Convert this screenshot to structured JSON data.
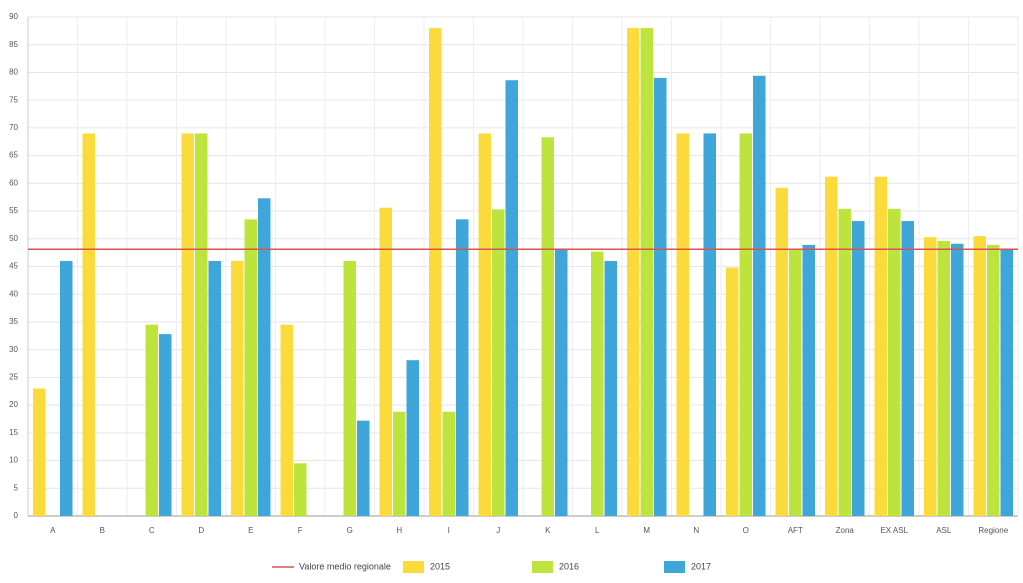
{
  "chart_data": {
    "type": "bar",
    "categories": [
      "A",
      "B",
      "C",
      "D",
      "E",
      "F",
      "G",
      "H",
      "I",
      "J",
      "K",
      "L",
      "M",
      "N",
      "O",
      "AFT",
      "Zona",
      "EX ASL",
      "ASL",
      "Regione"
    ],
    "series": [
      {
        "name": "2015",
        "color": "#fbdb3c",
        "values": [
          23,
          69,
          null,
          69,
          46,
          34.5,
          null,
          55.6,
          88,
          69,
          null,
          null,
          88,
          69,
          44.8,
          59.2,
          61.2,
          61.2,
          50.3,
          50.5
        ]
      },
      {
        "name": "2016",
        "color": "#bde33d",
        "values": [
          null,
          null,
          34.5,
          69,
          53.5,
          9.5,
          46,
          18.8,
          18.8,
          55.3,
          68.3,
          47.7,
          88,
          null,
          69,
          48,
          55.4,
          55.4,
          49.6,
          48.9
        ]
      },
      {
        "name": "2017",
        "color": "#3ea6d8",
        "values": [
          46,
          null,
          32.8,
          46,
          57.3,
          null,
          17.2,
          28.1,
          53.5,
          78.6,
          48,
          46,
          79,
          69,
          79.4,
          48.9,
          53.2,
          53.2,
          49.1,
          48
        ]
      }
    ],
    "reference": {
      "name": "Valore medio regionale",
      "value": 48.1,
      "color": "#d9534f"
    },
    "ylim": [
      0,
      90
    ],
    "yticks": [
      0,
      5,
      10,
      15,
      20,
      25,
      30,
      35,
      40,
      45,
      50,
      55,
      60,
      65,
      70,
      75,
      80,
      85,
      90
    ],
    "grid": true,
    "legend": "bottom"
  }
}
